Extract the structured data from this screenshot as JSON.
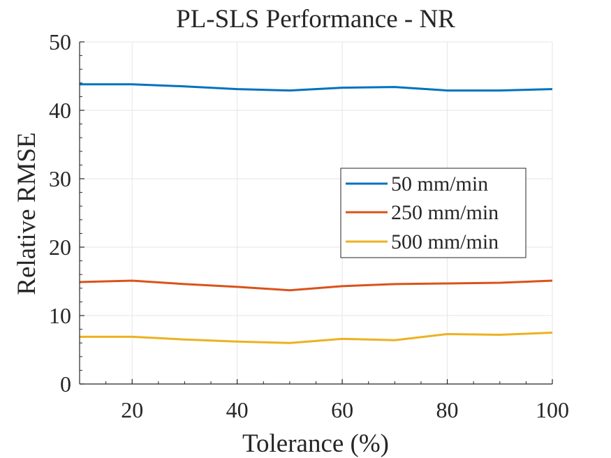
{
  "chart_data": {
    "type": "line",
    "title": "PL-SLS Performance - NR",
    "xlabel": "Tolerance (%)",
    "ylabel": "Relative RMSE",
    "xlim": [
      10,
      100
    ],
    "ylim": [
      0,
      50
    ],
    "xticks": [
      20,
      40,
      60,
      80,
      100
    ],
    "yticks": [
      0,
      10,
      20,
      30,
      40,
      50
    ],
    "grid": true,
    "legend_position": "center-right",
    "x": [
      10,
      20,
      30,
      40,
      50,
      60,
      70,
      80,
      90,
      100
    ],
    "series": [
      {
        "name": "50 mm/min",
        "color": "#0072BD",
        "values": [
          43.8,
          43.8,
          43.5,
          43.1,
          42.9,
          43.3,
          43.4,
          42.9,
          42.9,
          43.1
        ]
      },
      {
        "name": "250 mm/min",
        "color": "#D95319",
        "values": [
          14.9,
          15.1,
          14.6,
          14.2,
          13.7,
          14.3,
          14.6,
          14.7,
          14.8,
          15.1
        ]
      },
      {
        "name": "500 mm/min",
        "color": "#EDB120",
        "values": [
          6.9,
          6.9,
          6.5,
          6.2,
          6.0,
          6.6,
          6.4,
          7.3,
          7.2,
          7.5
        ]
      }
    ]
  }
}
